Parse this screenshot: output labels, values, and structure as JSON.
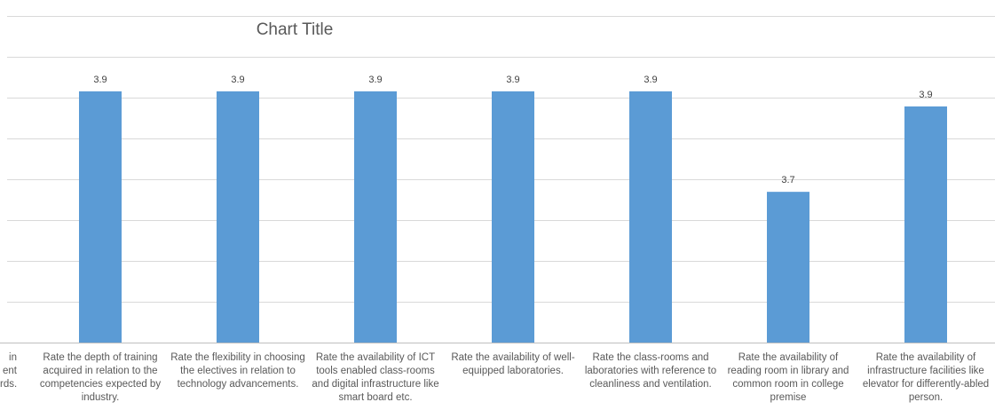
{
  "chart_data": {
    "type": "bar",
    "title": "Chart Title",
    "xlabel": "",
    "ylabel": "",
    "ylim": [
      3.4,
      4.05
    ],
    "grid": true,
    "color": "#5b9bd5",
    "categories": [
      "in\nent\nrds.",
      "Rate the depth of training acquired in relation to the competencies expected by industry.",
      "Rate the flexibility in choosing the electives in relation to technology advancements.",
      "Rate the availability of ICT tools enabled class-rooms and digital infrastructure like smart board etc.",
      "Rate the availability of well-equipped laboratories.",
      "Rate the class-rooms and laboratories with reference to cleanliness and ventilation.",
      "Rate the availability of reading room in library and common room in college premise",
      "Rate the availability of infrastructure facilities like elevator for differently-abled person."
    ],
    "values": [
      null,
      3.9,
      3.9,
      3.9,
      3.9,
      3.9,
      3.7,
      3.87
    ],
    "data_labels": [
      "",
      "3.9",
      "3.9",
      "3.9",
      "3.9",
      "3.9",
      "3.7",
      "3.9"
    ]
  }
}
